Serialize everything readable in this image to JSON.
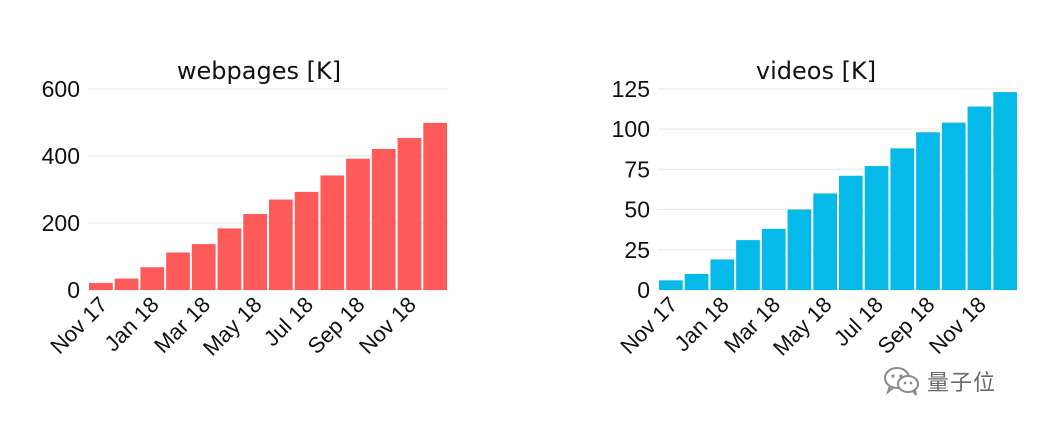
{
  "chart_data": [
    {
      "type": "bar",
      "title": "webpages [K]",
      "xlabel": "",
      "ylabel": "",
      "categories": [
        "Nov 17",
        "Dec 17",
        "Jan 18",
        "Feb 18",
        "Mar 18",
        "Apr 18",
        "May 18",
        "Jun 18",
        "Jul 18",
        "Aug 18",
        "Sep 18",
        "Oct 18",
        "Nov 18",
        "Dec 18"
      ],
      "tick_labels": [
        "Nov 17",
        "Jan 18",
        "Mar 18",
        "May 18",
        "Jul 18",
        "Sep 18",
        "Nov 18"
      ],
      "values": [
        21,
        34,
        68,
        112,
        137,
        184,
        227,
        270,
        293,
        342,
        392,
        421,
        454,
        499
      ],
      "yticks": [
        0,
        200,
        400,
        600
      ],
      "ylim": [
        0,
        615
      ],
      "color": "#ff5a5a",
      "grid": true
    },
    {
      "type": "bar",
      "title": "videos [K]",
      "xlabel": "",
      "ylabel": "",
      "categories": [
        "Nov 17",
        "Dec 17",
        "Jan 18",
        "Feb 18",
        "Mar 18",
        "Apr 18",
        "May 18",
        "Jun 18",
        "Jul 18",
        "Aug 18",
        "Sep 18",
        "Oct 18",
        "Nov 18",
        "Dec 18"
      ],
      "tick_labels": [
        "Nov 17",
        "Jan 18",
        "Mar 18",
        "May 18",
        "Jul 18",
        "Sep 18",
        "Nov 18"
      ],
      "values": [
        6,
        10,
        19,
        31,
        38,
        50,
        60,
        71,
        77,
        88,
        98,
        104,
        114,
        123
      ],
      "yticks": [
        0,
        25,
        50,
        75,
        100,
        125
      ],
      "ylim": [
        0,
        128
      ],
      "color": "#05b9e8",
      "grid": true
    }
  ],
  "watermark": {
    "text": "量子位",
    "icon": "wechat-icon"
  }
}
